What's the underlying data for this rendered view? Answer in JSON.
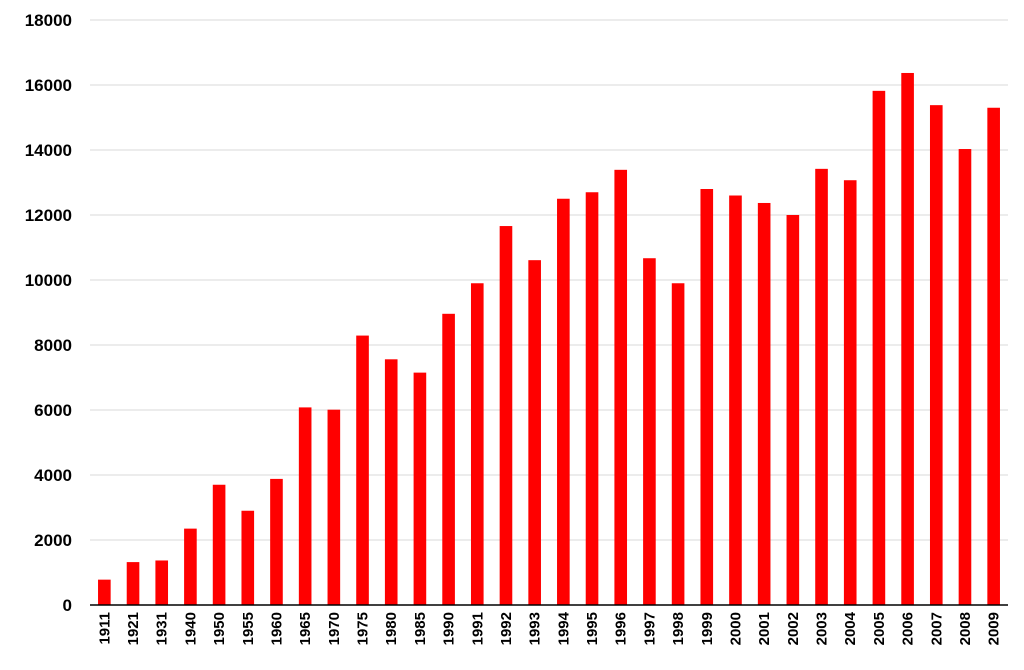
{
  "chart_data": {
    "type": "bar",
    "title": "",
    "xlabel": "",
    "ylabel": "",
    "categories": [
      "1911",
      "1921",
      "1931",
      "1940",
      "1950",
      "1955",
      "1960",
      "1965",
      "1970",
      "1975",
      "1980",
      "1985",
      "1990",
      "1991",
      "1992",
      "1993",
      "1994",
      "1995",
      "1996",
      "1997",
      "1998",
      "1999",
      "2000",
      "2001",
      "2002",
      "2003",
      "2004",
      "2005",
      "2006",
      "2007",
      "2008",
      "2009"
    ],
    "values": [
      780,
      1320,
      1370,
      2350,
      3700,
      2900,
      3880,
      6080,
      6010,
      8290,
      7560,
      7150,
      8960,
      9900,
      11660,
      10610,
      12500,
      12700,
      13390,
      10670,
      9900,
      12800,
      12600,
      12370,
      12000,
      13420,
      13070,
      15820,
      16370,
      15380,
      14030,
      15300
    ],
    "ylim": [
      0,
      18000
    ],
    "yticks": [
      "0",
      "2000",
      "4000",
      "6000",
      "8000",
      "10000",
      "12000",
      "14000",
      "16000",
      "18000"
    ],
    "grid": true,
    "legend": "none",
    "bar_color": "#ff0000"
  }
}
